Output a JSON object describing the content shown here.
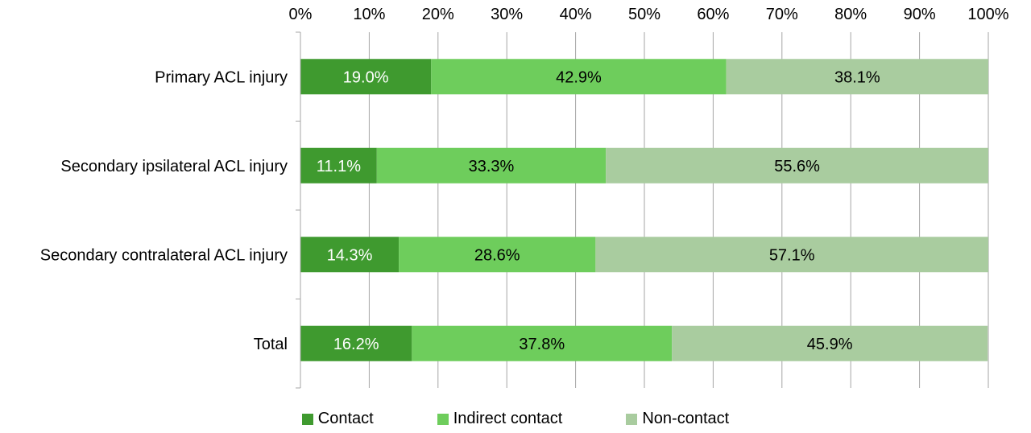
{
  "chart_data": {
    "type": "bar",
    "orientation": "horizontal",
    "stacked": "100%",
    "categories": [
      "Primary ACL injury",
      "Secondary ipsilateral ACL injury",
      "Secondary contralateral ACL injury",
      "Total"
    ],
    "series": [
      {
        "name": "Contact",
        "color": "#3f9a2f",
        "label_color": "#ffffff",
        "values": [
          19.0,
          11.1,
          14.3,
          16.2
        ]
      },
      {
        "name": "Indirect contact",
        "color": "#6ecd5c",
        "label_color": "#000000",
        "values": [
          42.9,
          33.3,
          28.6,
          37.8
        ]
      },
      {
        "name": "Non-contact",
        "color": "#a9cc9f",
        "label_color": "#000000",
        "values": [
          38.1,
          55.6,
          57.1,
          45.9
        ]
      }
    ],
    "data_labels": [
      [
        "19.0%",
        "42.9%",
        "38.1%"
      ],
      [
        "11.1%",
        "33.3%",
        "55.6%"
      ],
      [
        "14.3%",
        "28.6%",
        "57.1%"
      ],
      [
        "16.2%",
        "37.8%",
        "45.9%"
      ]
    ],
    "x_ticks": [
      "0%",
      "10%",
      "20%",
      "30%",
      "40%",
      "50%",
      "60%",
      "70%",
      "80%",
      "90%",
      "100%"
    ],
    "xlim": [
      0,
      100
    ],
    "x_axis_position": "top",
    "grid": true,
    "legend_position": "bottom",
    "title": "",
    "xlabel": "",
    "ylabel": ""
  }
}
